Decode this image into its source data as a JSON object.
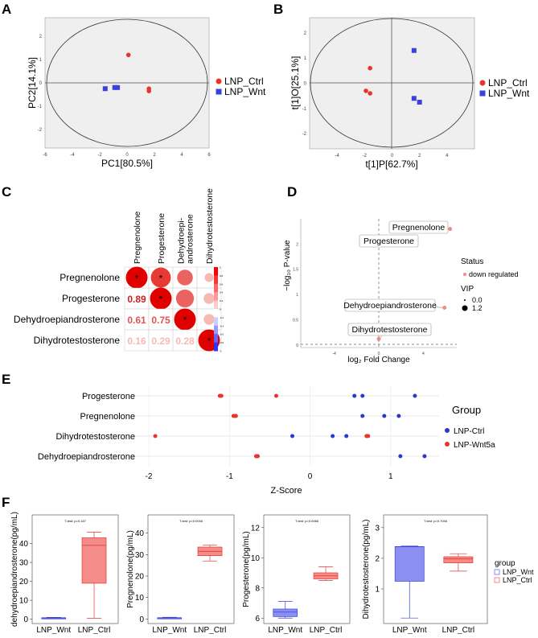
{
  "panel_labels": {
    "A": "A",
    "B": "B",
    "C": "C",
    "D": "D",
    "E": "E",
    "F": "F"
  },
  "colors": {
    "ctrl": "#e8352c",
    "wnt": "#3a42d8",
    "ci_ctrl": "#e8352c",
    "ci_wnt": "#2a3ac8",
    "pink": "#f28e8a",
    "plot_bg": "#efefef"
  },
  "chart_data": [
    {
      "id": "A",
      "type": "scatter",
      "xlabel": "PC1[80.5%]",
      "ylabel": "PC2[14.1%]",
      "xlim": [
        -6,
        6
      ],
      "ylim": [
        -2.8,
        2.8
      ],
      "xticks": [
        -6,
        -4,
        -2,
        0,
        2,
        4,
        6
      ],
      "yticks": [
        -2,
        -1,
        0,
        1,
        2
      ],
      "legend": [
        "LNP_Ctrl",
        "LNP_Wnt"
      ],
      "series": [
        {
          "name": "LNP_Ctrl",
          "points": [
            [
              0.1,
              1.2
            ],
            [
              1.6,
              -0.25
            ],
            [
              1.6,
              -0.35
            ]
          ]
        },
        {
          "name": "LNP_Wnt",
          "points": [
            [
              -1.6,
              -0.25
            ],
            [
              -0.9,
              -0.2
            ],
            [
              -0.7,
              -0.2
            ]
          ]
        }
      ]
    },
    {
      "id": "B",
      "type": "scatter",
      "xlabel": "t[1]P[62.7%]",
      "ylabel": "t[1]O[25.1%]",
      "xlim": [
        -6,
        6
      ],
      "ylim": [
        -2.6,
        2.6
      ],
      "xticks": [
        -4,
        -2,
        0,
        2,
        4
      ],
      "yticks": [
        -2,
        -1,
        0,
        1,
        2
      ],
      "legend": [
        "LNP_Ctrl",
        "LNP_Wnt"
      ],
      "series": [
        {
          "name": "LNP_Ctrl",
          "points": [
            [
              -1.6,
              0.6
            ],
            [
              -1.9,
              -0.3
            ],
            [
              -1.6,
              -0.4
            ]
          ]
        },
        {
          "name": "LNP_Wnt",
          "points": [
            [
              1.6,
              1.3
            ],
            [
              1.6,
              -0.6
            ],
            [
              2.0,
              -0.75
            ]
          ]
        }
      ]
    },
    {
      "id": "C",
      "type": "heatmap",
      "labels": [
        "Pregnenolone",
        "Progesterone",
        "Dehydroepiandrosterone",
        "Dihydrotestosterone"
      ],
      "col_labels": [
        "Pregnenolone",
        "Progesterone",
        "Dehydroepi-\nandrosterone",
        "Dihydrotestosterone"
      ],
      "lower_values": [
        [
          "",
          "",
          ""
        ],
        [
          "0.89",
          "",
          ""
        ],
        [
          "0.61",
          "0.75",
          ""
        ],
        [
          "0.16",
          "0.29",
          "0.28"
        ]
      ],
      "upper": [
        [
          1.0,
          0.89,
          0.61,
          0.16
        ],
        [
          0.89,
          1.0,
          0.75,
          0.29
        ],
        [
          0.61,
          0.75,
          1.0,
          0.28
        ],
        [
          0.16,
          0.29,
          0.28,
          1.0
        ]
      ],
      "stars": [
        [
          0,
          0
        ],
        [
          0,
          1
        ],
        [
          1,
          1
        ],
        [
          2,
          2
        ],
        [
          3,
          3
        ]
      ],
      "colorbar": [
        "1",
        "0.8",
        "0.6",
        "0.4",
        "0.2",
        "0",
        "-0.2",
        "-0.4",
        "-0.6",
        "-0.8",
        "-1"
      ]
    },
    {
      "id": "D",
      "type": "scatter",
      "xlabel": "log₂ Fold Change",
      "ylabel": "−log₁₀ P-value",
      "xlim": [
        -7,
        7
      ],
      "ylim": [
        -0.05,
        2.5
      ],
      "xticks": [
        -4,
        0,
        4
      ],
      "yticks": [
        0,
        0.5,
        1,
        1.5,
        2
      ],
      "points": [
        {
          "label": "Pregnenolone",
          "x": 6.4,
          "y": 2.3
        },
        {
          "label": "Progesterone",
          "x": 0.3,
          "y": 2.12
        },
        {
          "label": "Dehydroepiandrosterone",
          "x": 5.9,
          "y": 0.74
        },
        {
          "label": "Dihydrotestosterone",
          "x": 0.0,
          "y": 0.12
        }
      ],
      "legend_status_title": "Status",
      "legend_status": "down regulated",
      "legend_vip_title": "VIP",
      "legend_vip": [
        "0.0",
        "1.2"
      ]
    },
    {
      "id": "E",
      "type": "scatter",
      "xlabel": "Z-Score",
      "xlim": [
        -2.2,
        1.6
      ],
      "xticks": [
        -2,
        -1,
        0,
        1
      ],
      "categories": [
        "Progesterone",
        "Pregnenolone",
        "Dihydrotestosterone",
        "Dehydroepiandrosterone"
      ],
      "legend_title": "Group",
      "legend": [
        "LNP-Ctrl",
        "LNP-Wnt5a"
      ],
      "series": [
        {
          "name": "LNP-Ctrl",
          "values": [
            [
              0.55,
              0.65,
              1.3
            ],
            [
              0.65,
              0.92,
              1.1
            ],
            [
              -0.22,
              0.28,
              0.45
            ],
            [
              -0.65,
              1.12,
              1.42
            ]
          ]
        },
        {
          "name": "LNP-Wnt5a",
          "values": [
            [
              -1.12,
              -1.1,
              -0.42
            ],
            [
              -0.95,
              -0.93,
              -0.92
            ],
            [
              -1.92,
              0.7,
              0.72
            ],
            [
              -0.67,
              -0.66,
              -0.65
            ]
          ]
        }
      ]
    },
    {
      "id": "F1",
      "type": "box",
      "ylabel": "dehydroepiandrosterone(pg/mL)",
      "test": "T-test: p=0.167",
      "categories": [
        "LNP_Wnt",
        "LNP_Ctrl"
      ],
      "ylim": [
        -1,
        50
      ],
      "yticks": [
        0,
        10,
        20,
        30,
        40
      ],
      "boxes": [
        {
          "min": 0.3,
          "q1": 0.5,
          "med": 0.6,
          "q3": 0.8,
          "max": 1.0
        },
        {
          "min": 0.5,
          "q1": 19,
          "med": 39,
          "q3": 43,
          "max": 46
        }
      ]
    },
    {
      "id": "F2",
      "type": "box",
      "ylabel": "Pregnenolone(pg/mL)",
      "test": "T-test: p=0.0046",
      "categories": [
        "LNP_Wnt",
        "LNP_Ctrl"
      ],
      "ylim": [
        -1,
        44
      ],
      "yticks": [
        0,
        10,
        20,
        30,
        40
      ],
      "boxes": [
        {
          "min": 0.2,
          "q1": 0.3,
          "med": 0.45,
          "q3": 0.6,
          "max": 0.8
        },
        {
          "min": 27,
          "q1": 29.5,
          "med": 31.5,
          "q3": 33.5,
          "max": 34.5
        }
      ]
    },
    {
      "id": "F3",
      "type": "box",
      "ylabel": "Progesterone(pg/mL)",
      "test": "T-test: p=0.0066",
      "categories": [
        "LNP_Wnt",
        "LNP_Ctrl"
      ],
      "ylim": [
        5.8,
        12.2
      ],
      "yticks": [
        6,
        8,
        10,
        12
      ],
      "boxes": [
        {
          "min": 6.0,
          "q1": 6.1,
          "med": 6.4,
          "q3": 6.6,
          "max": 7.1
        },
        {
          "min": 8.5,
          "q1": 8.6,
          "med": 8.8,
          "q3": 9.0,
          "max": 9.4
        }
      ]
    },
    {
      "id": "F4",
      "type": "box",
      "ylabel": "Dihydrotestosterone(pg/mL)",
      "test": "T-test: p=0.7046",
      "categories": [
        "LNP_Wnt",
        "LNP_Ctrl"
      ],
      "ylim": [
        -0.05,
        3.1
      ],
      "yticks": [
        1,
        2,
        3
      ],
      "boxes": [
        {
          "min": 0.05,
          "q1": 1.25,
          "med": 2.38,
          "q3": 2.38,
          "max": 2.4
        },
        {
          "min": 1.58,
          "q1": 1.85,
          "med": 1.98,
          "q3": 2.05,
          "max": 2.15
        }
      ],
      "legend_title": "group",
      "legend": [
        "LNP_Wnt",
        "LNP_Ctrl"
      ]
    }
  ]
}
